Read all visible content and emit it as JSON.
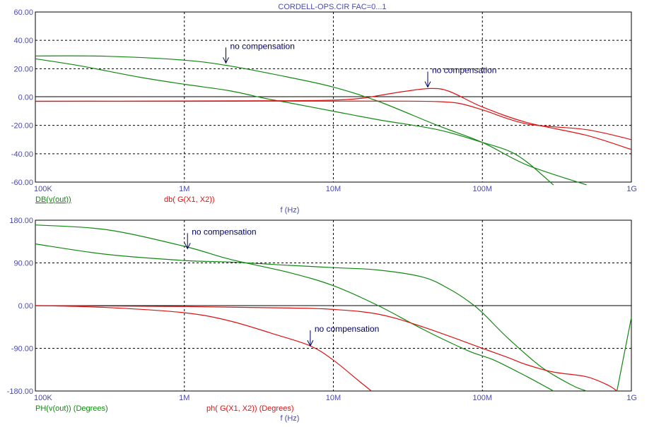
{
  "title": "CORDELL-OPS.CIR FAC=0...1",
  "colors": {
    "green": "#118811",
    "red": "#dd1111",
    "text": "#4a4aa8",
    "annotation": "#000060"
  },
  "chart_data": [
    {
      "type": "line",
      "xscale": "log",
      "xlim": [
        100000,
        1000000000
      ],
      "ylim": [
        -60,
        60
      ],
      "xtick_values": [
        100000,
        1000000,
        10000000,
        100000000,
        1000000000
      ],
      "xtick_labels": [
        "100K",
        "1M",
        "10M",
        "100M",
        "1G"
      ],
      "ytick_values": [
        60,
        40,
        20,
        0,
        -20,
        -40,
        -60
      ],
      "ytick_labels": [
        "60.00",
        "40.00",
        "20.00",
        "0.00",
        "-20.00",
        "-40.00",
        "-60.00"
      ],
      "xlabel": "f (Hz)",
      "legend": [
        "DB(v(out))",
        "db( G(X1, X2))"
      ],
      "series": [
        {
          "name": "DB(v(out))",
          "color": "#118811",
          "x": [
            100000,
            300000,
            1000000,
            2000000,
            5000000,
            10000000,
            20000000,
            50000000,
            100000000,
            200000000,
            500000000
          ],
          "y": [
            29,
            28.8,
            26,
            22,
            14,
            7,
            -3,
            -20,
            -32,
            -48,
            -62
          ]
        },
        {
          "name": "DB(v(out))",
          "color": "#118811",
          "x": [
            100000,
            200000,
            500000,
            1000000,
            2000000,
            3500000,
            5000000,
            10000000,
            20000000,
            50000000,
            100000000,
            150000000,
            200000000,
            300000000
          ],
          "y": [
            27,
            22,
            14,
            9,
            4.5,
            -1,
            -4,
            -10,
            -16,
            -23,
            -32,
            -38,
            -46,
            -62
          ]
        },
        {
          "name": "db( G(X1, X2))",
          "color": "#dd1111",
          "x": [
            100000,
            1000000,
            5000000,
            10000000,
            15000000,
            20000000,
            30000000,
            45000000,
            60000000,
            100000000,
            200000000,
            500000000,
            1000000000
          ],
          "y": [
            -3,
            -2.8,
            -2.6,
            -2.2,
            -1,
            1,
            4,
            6,
            4,
            -7,
            -18,
            -27,
            -37
          ]
        },
        {
          "name": "db( G(X1, X2))",
          "color": "#dd1111",
          "x": [
            100000,
            1000000,
            3000000,
            10000000,
            30000000,
            50000000,
            70000000,
            100000000,
            200000000,
            500000000,
            1000000000
          ],
          "y": [
            -3,
            -3,
            -2.9,
            -2.9,
            -2.9,
            -3.2,
            -4.5,
            -9,
            -19,
            -23,
            -30
          ]
        }
      ],
      "annotations": [
        {
          "text": "no compensation",
          "x": 1900000,
          "y": 24
        },
        {
          "text": "no compensation",
          "x": 43000000,
          "y": 7
        }
      ]
    },
    {
      "type": "line",
      "xscale": "log",
      "xlim": [
        100000,
        1000000000
      ],
      "ylim": [
        -180,
        180
      ],
      "xtick_values": [
        100000,
        1000000,
        10000000,
        100000000,
        1000000000
      ],
      "xtick_labels": [
        "100K",
        "1M",
        "10M",
        "100M",
        "1G"
      ],
      "ytick_values": [
        180,
        90,
        0,
        -90,
        -180
      ],
      "ytick_labels": [
        "180.00",
        "90.00",
        "0.00",
        "-90.00",
        "-180.00"
      ],
      "xlabel": "f (Hz)",
      "legend": [
        "PH(v(out)) (Degrees)",
        "ph( G(X1, X2)) (Degrees)"
      ],
      "series": [
        {
          "name": "PH(v(out)) (Degrees)",
          "color": "#118811",
          "x": [
            100000,
            300000,
            1000000,
            2000000,
            5000000,
            10000000,
            20000000,
            40000000,
            80000000,
            120000000,
            200000000,
            300000000
          ],
          "y": [
            170,
            160,
            125,
            98,
            70,
            42,
            0,
            -50,
            -95,
            -115,
            -150,
            -180
          ]
        },
        {
          "name": "PH(v(out)) (Degrees)",
          "color": "#118811",
          "x": [
            100000,
            300000,
            1000000,
            2000000,
            5000000,
            10000000,
            20000000,
            40000000,
            60000000,
            80000000,
            100000000,
            150000000,
            250000000,
            400000000,
            500000000
          ],
          "y": [
            130,
            108,
            95,
            92,
            85,
            80,
            75,
            60,
            35,
            10,
            -15,
            -70,
            -130,
            -168,
            -180
          ]
        },
        {
          "name": "PH(v(out)) (Degrees)",
          "color": "#118811",
          "x": [
            800000000,
            1000000000
          ],
          "y": [
            -180,
            -25
          ]
        },
        {
          "name": "ph( G(X1, X2)) (Degrees)",
          "color": "#dd1111",
          "x": [
            100000,
            300000,
            1000000,
            2000000,
            4000000,
            7000000,
            10000000,
            15000000,
            18000000
          ],
          "y": [
            0,
            -4,
            -15,
            -32,
            -60,
            -85,
            -115,
            -160,
            -180
          ]
        },
        {
          "name": "ph( G(X1, X2)) (Degrees)",
          "color": "#dd1111",
          "x": [
            100000,
            1000000,
            5000000,
            10000000,
            20000000,
            40000000,
            100000000,
            150000000,
            200000000,
            300000000,
            500000000,
            700000000,
            800000000
          ],
          "y": [
            0,
            -2,
            -5,
            -8,
            -18,
            -45,
            -90,
            -110,
            -125,
            -140,
            -150,
            -168,
            -180
          ]
        }
      ],
      "annotations": [
        {
          "text": "no compensation",
          "x": 1050000,
          "y": 120
        },
        {
          "text": "no compensation",
          "x": 7000000,
          "y": -85
        }
      ]
    }
  ]
}
